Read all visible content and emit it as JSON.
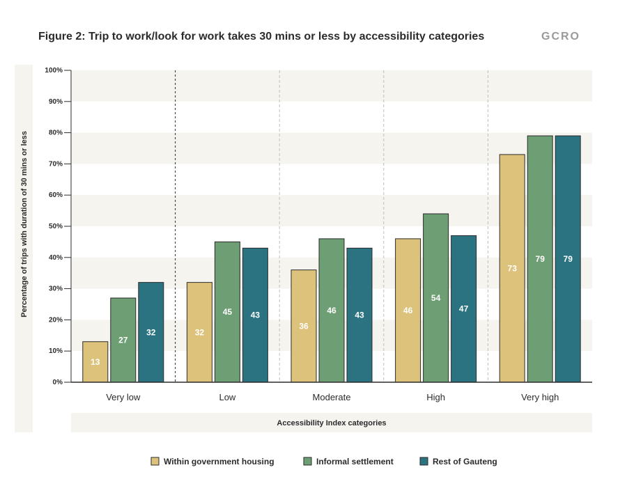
{
  "title": "Figure 2: Trip to work/look for work takes 30 mins or less by accessibility categories",
  "logo": "GCRO",
  "colors": {
    "housing": "#dcc27a",
    "informal": "#6e9e73",
    "rest": "#2b7381",
    "band": "#f5f4ef"
  },
  "chart_data": {
    "type": "bar",
    "title": "Figure 2: Trip to work/look for work takes 30 mins or less by accessibility categories",
    "xlabel": "Accessibility Index categories",
    "ylabel": "Percentage of trips with duration of 30 mins or less",
    "ylim": [
      0,
      100
    ],
    "yticks": [
      "0%",
      "10%",
      "20%",
      "30%",
      "40%",
      "50%",
      "60%",
      "70%",
      "80%",
      "90%",
      "100%"
    ],
    "categories": [
      "Very low",
      "Low",
      "Moderate",
      "High",
      "Very high"
    ],
    "series": [
      {
        "name": "Within government housing",
        "values": [
          13,
          32,
          36,
          46,
          73
        ]
      },
      {
        "name": "Informal settlement",
        "values": [
          27,
          45,
          46,
          54,
          79
        ]
      },
      {
        "name": "Rest of Gauteng",
        "values": [
          32,
          43,
          43,
          47,
          79
        ]
      }
    ],
    "legend": "bottom",
    "grid": true
  }
}
